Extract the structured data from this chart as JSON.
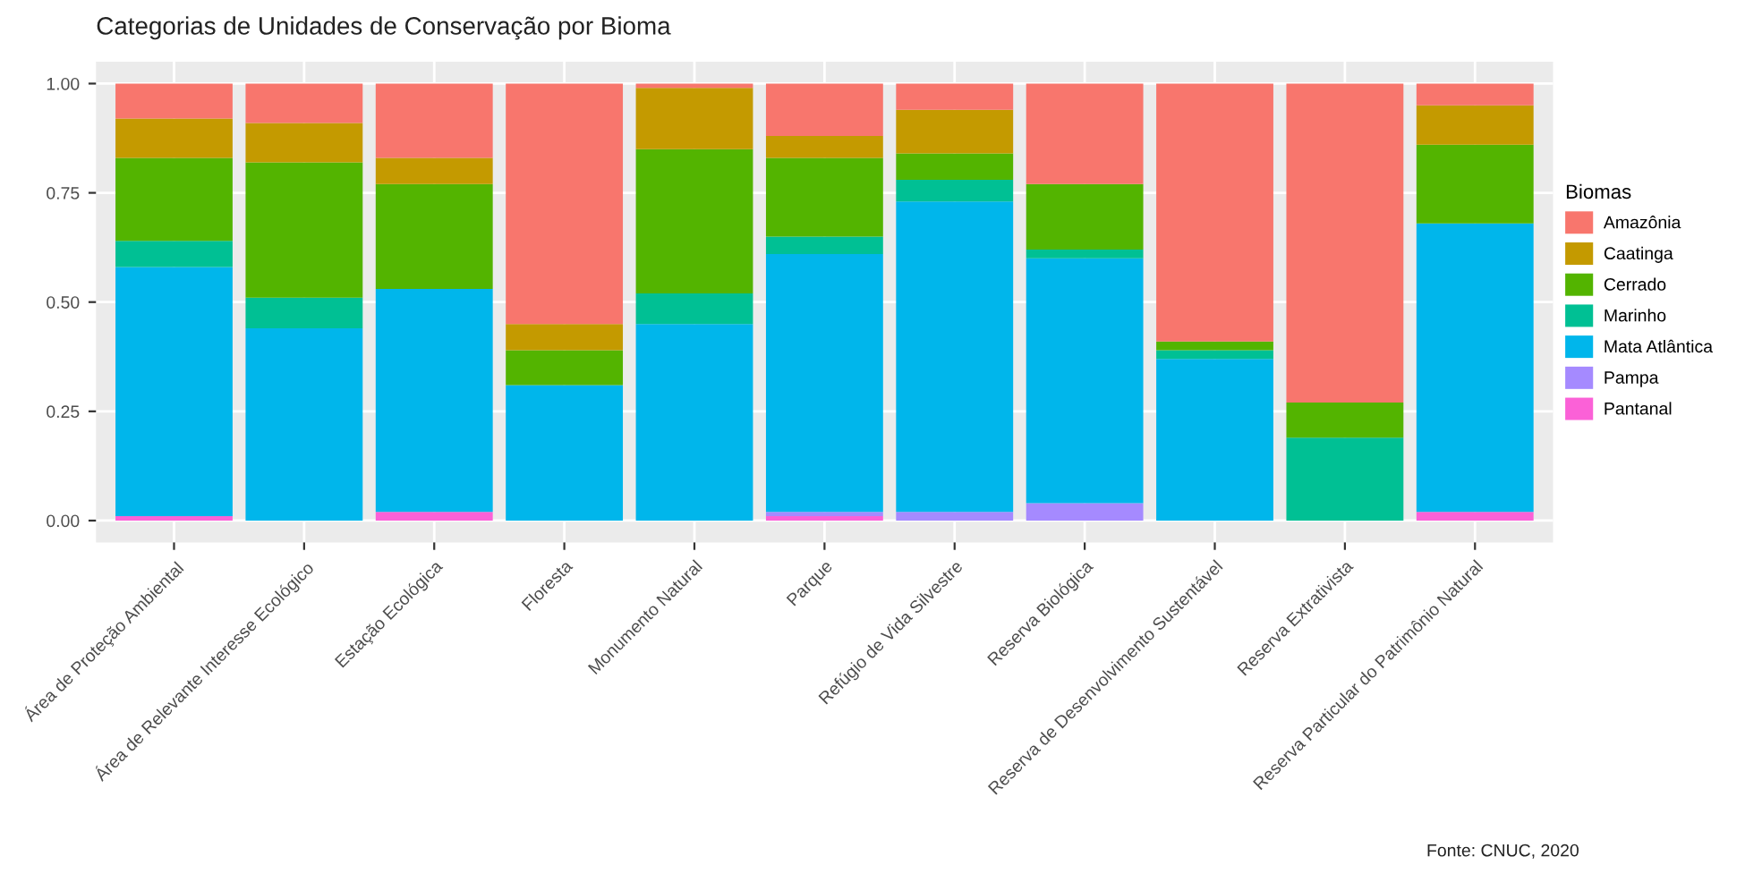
{
  "chart_data": {
    "type": "bar",
    "stacked": true,
    "title": "Categorias de Unidades de Conservação por Bioma",
    "legend_title": "Biomas",
    "legend": "right",
    "grid": true,
    "annotations": [
      "Fonte: CNUC, 2020"
    ],
    "categories": [
      "Área de Proteção Ambiental",
      "Área de Relevante Interesse Ecológico",
      "Estação Ecológica",
      "Floresta",
      "Monumento Natural",
      "Parque",
      "Refúgio de Vida Silvestre",
      "Reserva Biológica",
      "Reserva de Desenvolvimento Sustentável",
      "Reserva Extrativista",
      "Reserva Particular do Patrimônio Natural"
    ],
    "ylim": [
      -0.05,
      1.05
    ],
    "yticks": [
      {
        "value": 0,
        "label": "0.00"
      },
      {
        "value": 0.25,
        "label": "0.25"
      },
      {
        "value": 0.5,
        "label": "0.50"
      },
      {
        "value": 0.75,
        "label": "0.75"
      },
      {
        "value": 1,
        "label": "1.00"
      }
    ],
    "series": [
      {
        "name": "Pantanal",
        "color": "#fb61d7",
        "values": [
          0.01,
          0,
          0.02,
          0,
          0,
          0.01,
          0,
          0,
          0,
          0,
          0.02
        ]
      },
      {
        "name": "Pampa",
        "color": "#a58aff",
        "values": [
          0,
          0,
          0,
          0,
          0,
          0.01,
          0.02,
          0.04,
          0,
          0,
          0
        ]
      },
      {
        "name": "Mata Atlântica",
        "color": "#00b6eb",
        "values": [
          0.57,
          0.44,
          0.51,
          0.31,
          0.45,
          0.59,
          0.71,
          0.56,
          0.37,
          0,
          0.66
        ]
      },
      {
        "name": "Marinho",
        "color": "#00c094",
        "values": [
          0.06,
          0.07,
          0,
          0,
          0.07,
          0.04,
          0.05,
          0.02,
          0.02,
          0.19,
          0
        ]
      },
      {
        "name": "Cerrado",
        "color": "#53b400",
        "values": [
          0.19,
          0.31,
          0.24,
          0.08,
          0.33,
          0.18,
          0.06,
          0.15,
          0.02,
          0.08,
          0.18
        ]
      },
      {
        "name": "Caatinga",
        "color": "#c49a00",
        "values": [
          0.09,
          0.09,
          0.06,
          0.06,
          0.14,
          0.05,
          0.1,
          0,
          0,
          0,
          0.09
        ]
      },
      {
        "name": "Amazônia",
        "color": "#f8766d",
        "values": [
          0.08,
          0.09,
          0.17,
          0.55,
          0.01,
          0.12,
          0.06,
          0.23,
          0.59,
          0.73,
          0.05
        ]
      }
    ]
  }
}
